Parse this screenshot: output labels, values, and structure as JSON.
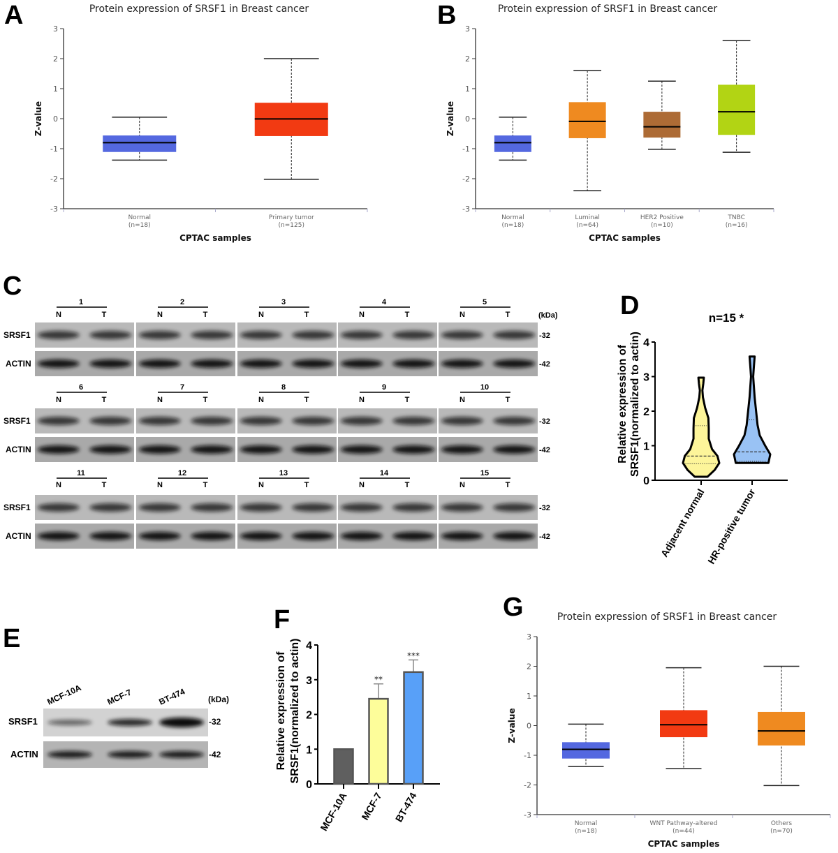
{
  "panel_labels": {
    "a": "A",
    "b": "B",
    "c": "C",
    "d": "D",
    "e": "E",
    "f": "F",
    "g": "G"
  },
  "chart_data": [
    {
      "panel": "A",
      "type": "box",
      "title": "Protein expression of SRSF1 in Breast cancer",
      "xlabel": "CPTAC samples",
      "ylabel": "Z-value",
      "ylim": [
        -3,
        3
      ],
      "yticks": [
        3,
        2,
        1,
        0,
        -1,
        -2,
        -3
      ],
      "groups": [
        {
          "label": "Normal",
          "n": "(n=18)",
          "color": "#5468e0",
          "min": -1.38,
          "q1": -1.11,
          "median": -0.8,
          "q3": -0.56,
          "max": 0.05
        },
        {
          "label": "Primary tumor",
          "n": "(n=125)",
          "color": "#f23a12",
          "min": -2.02,
          "q1": -0.58,
          "median": -0.01,
          "q3": 0.53,
          "max": 2.0
        }
      ]
    },
    {
      "panel": "B",
      "type": "box",
      "title": "Protein expression of SRSF1 in Breast cancer",
      "xlabel": "CPTAC samples",
      "ylabel": "Z-value",
      "ylim": [
        -3,
        3
      ],
      "yticks": [
        3,
        2,
        1,
        0,
        -1,
        -2,
        -3
      ],
      "groups": [
        {
          "label": "Normal",
          "n": "(n=18)",
          "color": "#5468e0",
          "min": -1.38,
          "q1": -1.11,
          "median": -0.8,
          "q3": -0.56,
          "max": 0.05
        },
        {
          "label": "Luminal",
          "n": "(n=64)",
          "color": "#ef8a20",
          "min": -2.4,
          "q1": -0.65,
          "median": -0.09,
          "q3": 0.55,
          "max": 1.6
        },
        {
          "label": "HER2 Positive",
          "n": "(n=10)",
          "color": "#ad6b35",
          "min": -1.02,
          "q1": -0.63,
          "median": -0.27,
          "q3": 0.23,
          "max": 1.25
        },
        {
          "label": "TNBC",
          "n": "(n=16)",
          "color": "#b2d414",
          "min": -1.12,
          "q1": -0.54,
          "median": 0.23,
          "q3": 1.13,
          "max": 2.6
        }
      ]
    },
    {
      "panel": "D",
      "type": "violin",
      "title": "n=15 *",
      "ylabel_line1": "Relative expression of",
      "ylabel_line2": "SRSF1(normalized to actin)",
      "ylim": [
        0,
        4
      ],
      "yticks": [
        0,
        1,
        2,
        3,
        4
      ],
      "groups": [
        {
          "label": "Adjacent normal",
          "color": "#fdf59a",
          "min": 0.1,
          "q1": 0.48,
          "median": 0.7,
          "q3": 1.58,
          "max": 2.97,
          "density": [
            [
              0.1,
              0.35
            ],
            [
              0.3,
              0.75
            ],
            [
              0.5,
              1.0
            ],
            [
              0.7,
              0.9
            ],
            [
              0.9,
              0.6
            ],
            [
              1.2,
              0.42
            ],
            [
              1.5,
              0.42
            ],
            [
              1.8,
              0.4
            ],
            [
              2.1,
              0.22
            ],
            [
              2.4,
              0.1
            ],
            [
              2.6,
              0.07
            ],
            [
              2.8,
              0.12
            ],
            [
              2.97,
              0.15
            ]
          ]
        },
        {
          "label": "HR-positive tumor",
          "color": "#99c2f4",
          "min": 0.5,
          "q1": 0.55,
          "median": 0.82,
          "q3": 1.75,
          "max": 3.58,
          "density": [
            [
              0.5,
              0.9
            ],
            [
              0.75,
              1.0
            ],
            [
              1.0,
              0.72
            ],
            [
              1.3,
              0.42
            ],
            [
              1.6,
              0.3
            ],
            [
              2.0,
              0.22
            ],
            [
              2.4,
              0.14
            ],
            [
              2.7,
              0.1
            ],
            [
              3.0,
              0.06
            ],
            [
              3.3,
              0.1
            ],
            [
              3.58,
              0.14
            ]
          ]
        }
      ]
    },
    {
      "panel": "F",
      "type": "bar",
      "ylabel_line1": "Relative expression of",
      "ylabel_line2": "SRSF1(normalized to actin)",
      "ylim": [
        0,
        4
      ],
      "yticks": [
        0,
        1,
        2,
        3,
        4
      ],
      "categories": [
        "MCF-10A",
        "MCF-7",
        "BT-474"
      ],
      "values": [
        1.0,
        2.45,
        3.22
      ],
      "errors": [
        0.01,
        0.43,
        0.35
      ],
      "significance": [
        "",
        "**",
        "***"
      ],
      "colors": [
        "#5f5f5f",
        "#fdfd9a",
        "#58a0f8"
      ]
    },
    {
      "panel": "G",
      "type": "box",
      "title": "Protein expression of SRSF1 in Breast cancer",
      "xlabel": "CPTAC samples",
      "ylabel": "Z-value",
      "ylim": [
        -3,
        3
      ],
      "yticks": [
        3,
        2,
        1,
        0,
        -1,
        -2,
        -3
      ],
      "groups": [
        {
          "label": "Normal",
          "n": "(n=18)",
          "color": "#5468e0",
          "min": -1.38,
          "q1": -1.11,
          "median": -0.8,
          "q3": -0.56,
          "max": 0.05
        },
        {
          "label": "WNT Pathway-altered",
          "n": "(n=44)",
          "color": "#f23a12",
          "min": -1.45,
          "q1": -0.39,
          "median": 0.03,
          "q3": 0.52,
          "max": 1.95
        },
        {
          "label": "Others",
          "n": "(n=70)",
          "color": "#ef8a20",
          "min": -2.02,
          "q1": -0.67,
          "median": -0.18,
          "q3": 0.46,
          "max": 2.0
        }
      ]
    }
  ],
  "blot_c": {
    "samples": [
      "1",
      "2",
      "3",
      "4",
      "5",
      "6",
      "7",
      "8",
      "9",
      "10",
      "11",
      "12",
      "13",
      "14",
      "15"
    ],
    "lane_labels": [
      "N",
      "T"
    ],
    "rows": [
      "SRSF1",
      "ACTIN"
    ],
    "markers": [
      "-32",
      "-42"
    ],
    "unit": "(kDa)"
  },
  "blot_e": {
    "cell_lines": [
      "MCF-10A",
      "MCF-7",
      "BT-474"
    ],
    "rows": [
      "SRSF1",
      "ACTIN"
    ],
    "markers": [
      "-32",
      "-42"
    ],
    "unit": "(kDa)"
  }
}
